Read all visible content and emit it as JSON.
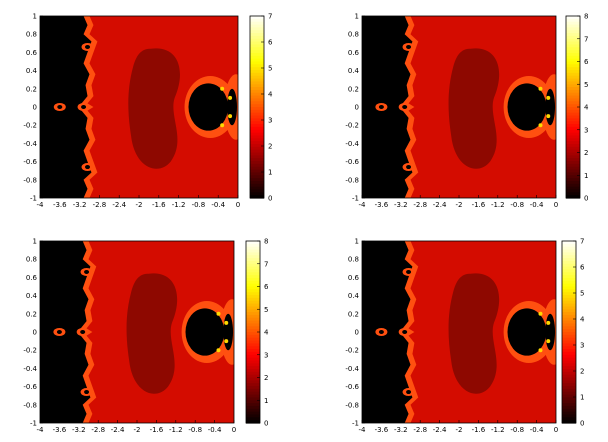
{
  "chart_data": [
    {
      "type": "heatmap",
      "xlim": [
        -4,
        0
      ],
      "ylim": [
        -1,
        1
      ],
      "xticks": [
        -4,
        -3.6,
        -3.2,
        -2.8,
        -2.4,
        -2,
        -1.6,
        -1.2,
        -0.8,
        -0.4,
        0
      ],
      "yticks": [
        1,
        0.8,
        0.6,
        0.4,
        0.2,
        0,
        -0.2,
        -0.4,
        -0.6,
        -0.8,
        -1
      ],
      "clim": [
        0,
        7
      ],
      "cticks": [
        7,
        6,
        5,
        4,
        3,
        2,
        1,
        0
      ],
      "colormap": "hot"
    },
    {
      "type": "heatmap",
      "xlim": [
        -4,
        0
      ],
      "ylim": [
        -1,
        1
      ],
      "xticks": [
        -4,
        -3.6,
        -3.2,
        -2.8,
        -2.4,
        -2,
        -1.6,
        -1.2,
        -0.8,
        -0.4,
        0
      ],
      "yticks": [
        1,
        0.8,
        0.6,
        0.4,
        0.2,
        0,
        -0.2,
        -0.4,
        -0.6,
        -0.8,
        -1
      ],
      "clim": [
        0,
        8
      ],
      "cticks": [
        8,
        7,
        6,
        5,
        4,
        3,
        2,
        1,
        0
      ],
      "colormap": "hot"
    },
    {
      "type": "heatmap",
      "xlim": [
        -4,
        0
      ],
      "ylim": [
        -1,
        1
      ],
      "xticks": [
        -4,
        -3.6,
        -3.2,
        -2.8,
        -2.4,
        -2,
        -1.6,
        -1.2,
        -0.8,
        -0.4,
        0
      ],
      "yticks": [
        1,
        0.8,
        0.6,
        0.4,
        0.2,
        0,
        -0.2,
        -0.4,
        -0.6,
        -0.8,
        -1
      ],
      "clim": [
        0,
        8
      ],
      "cticks": [
        8,
        7,
        6,
        5,
        4,
        3,
        2,
        1,
        0
      ],
      "colormap": "hot"
    },
    {
      "type": "heatmap",
      "xlim": [
        -4,
        0
      ],
      "ylim": [
        -1,
        1
      ],
      "xticks": [
        -4,
        -3.6,
        -3.2,
        -2.8,
        -2.4,
        -2,
        -1.6,
        -1.2,
        -0.8,
        -0.4,
        0
      ],
      "yticks": [
        1,
        0.8,
        0.6,
        0.4,
        0.2,
        0,
        -0.2,
        -0.4,
        -0.6,
        -0.8,
        -1
      ],
      "clim": [
        0,
        7
      ],
      "cticks": [
        7,
        6,
        5,
        4,
        3,
        2,
        1,
        0
      ],
      "colormap": "hot"
    }
  ],
  "colors": {
    "background_region": "#d40c00",
    "center_region": "#8e0800",
    "boundary_orange": "#ff5010",
    "black_region": "#000000"
  }
}
